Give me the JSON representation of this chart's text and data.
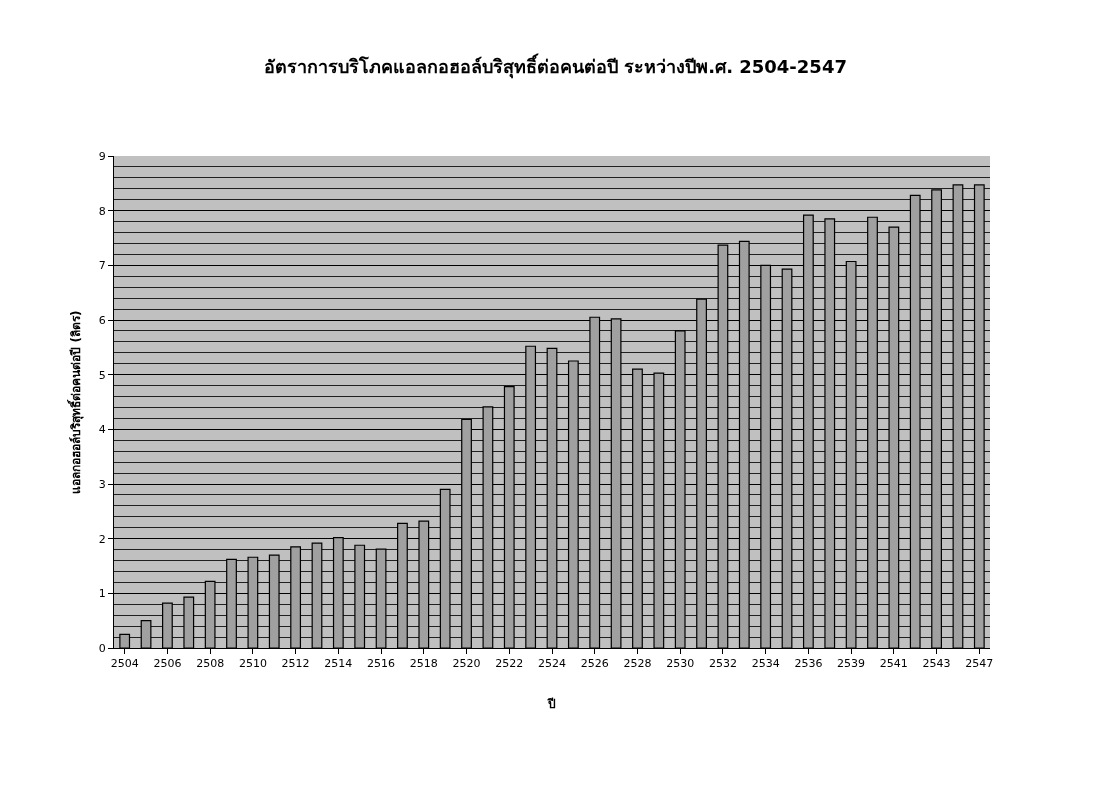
{
  "chart_data": {
    "type": "bar",
    "title": "อัตราการบริโภคแอลกอฮอล์บริสุทธิ์ต่อคนต่อปี ระหว่างปีพ.ศ. 2504-2547",
    "xlabel": "ปี",
    "ylabel": "แอลกอฮอล์บริสุทธิ์ต่อคนต่อปี (ลิตร)",
    "categories": [
      "2504",
      null,
      "2506",
      null,
      "2508",
      null,
      "2510",
      null,
      "2512",
      null,
      "2514",
      null,
      "2516",
      null,
      "2518",
      null,
      "2520",
      null,
      "2522",
      null,
      "2524",
      null,
      "2526",
      null,
      "2528",
      null,
      "2530",
      null,
      "2532",
      null,
      "2534",
      null,
      "2536",
      null,
      "2539",
      null,
      "2541",
      null,
      "2543",
      null,
      "2547"
    ],
    "values": [
      0.25,
      0.5,
      0.82,
      0.93,
      1.22,
      1.62,
      1.66,
      1.7,
      1.85,
      1.92,
      2.02,
      1.88,
      1.81,
      2.28,
      2.32,
      2.9,
      4.18,
      4.41,
      4.78,
      5.52,
      5.48,
      5.25,
      6.05,
      6.02,
      5.1,
      5.03,
      5.8,
      6.38,
      7.37,
      7.44,
      7.0,
      6.93,
      7.92,
      7.85,
      7.07,
      7.88,
      7.7,
      8.28,
      8.38,
      8.47,
      8.47
    ],
    "color": "#a0a0a0",
    "ylim": [
      0,
      9
    ],
    "yticks": [
      0,
      1,
      2,
      3,
      4,
      5,
      6,
      7,
      8,
      9
    ],
    "grid": "y",
    "legend": false
  }
}
